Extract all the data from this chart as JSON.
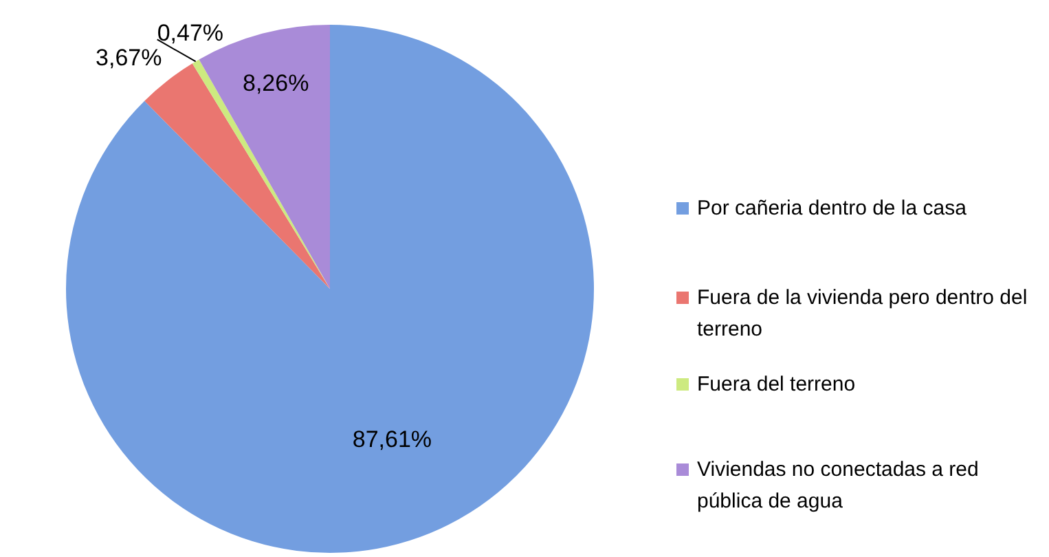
{
  "chart_data": {
    "type": "pie",
    "categories": [
      "Por cañeria dentro de la casa",
      "Fuera de la vivienda pero dentro del terreno",
      "Fuera del terreno",
      "Viviendas no conectadas a red pública de agua"
    ],
    "values": [
      87.61,
      3.67,
      0.47,
      8.26
    ],
    "colors": [
      "#739ee0",
      "#ea7670",
      "#cdea80",
      "#a98bd8"
    ],
    "value_labels": [
      "87,61%",
      "3,67%",
      "0,47%",
      "8,26%"
    ],
    "legend": "right"
  }
}
